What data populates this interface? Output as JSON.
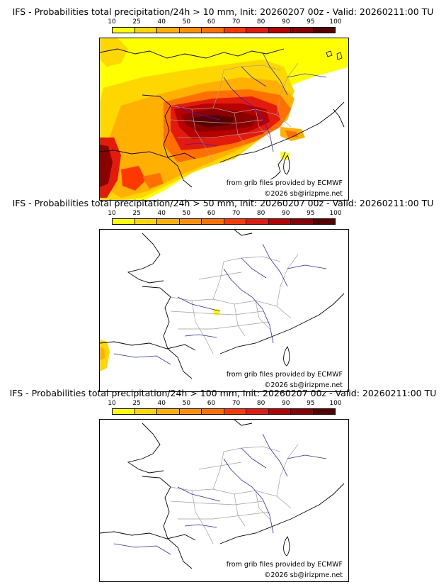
{
  "colorbar": {
    "ticks": [
      "10",
      "25",
      "40",
      "50",
      "60",
      "70",
      "80",
      "90",
      "95",
      "100"
    ],
    "colors": [
      "#ffff00",
      "#ffd700",
      "#ffb000",
      "#ff9000",
      "#ff7000",
      "#ff3800",
      "#e31a0c",
      "#b80000",
      "#8b0000",
      "#5a0000"
    ]
  },
  "panels": [
    {
      "title": "IFS - Probabilities total precipitation/24h > 10 mm, Init: 20260207 00z - Valid: 20260211:00 TU",
      "credit_source": "from grib files provided by ECMWF",
      "credit_copyright": "©2026 sb@irizpme.net"
    },
    {
      "title": "IFS - Probabilities total precipitation/24h > 50 mm, Init: 20260207 00z - Valid: 20260211:00 TU",
      "credit_source": "from grib files provided by ECMWF",
      "credit_copyright": "©2026 sb@irizpme.net"
    },
    {
      "title": "IFS - Probabilities total precipitation/24h > 100 mm, Init: 20260207 00z - Valid: 20260211:00 TU",
      "credit_source": "from grib files provided by ECMWF",
      "credit_copyright": "©2026 sb@irizpme.net"
    }
  ],
  "map_colors": {
    "coast": "#000000",
    "borders": "#a0a0a0",
    "rivers": "#2828d0"
  }
}
